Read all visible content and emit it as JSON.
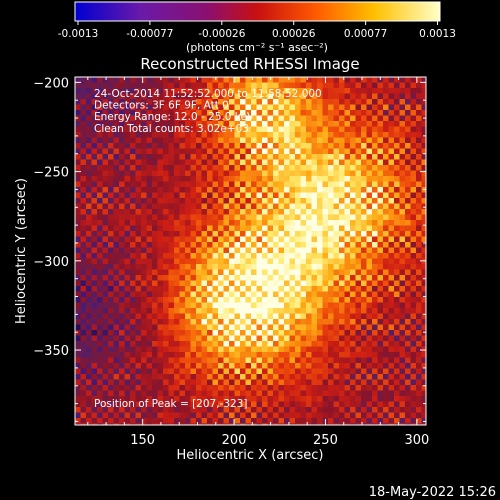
{
  "chart_data": {
    "type": "heatmap",
    "title": "Reconstructed RHESSI Image",
    "xlabel": "Heliocentric X (arcsec)",
    "ylabel": "Heliocentric Y (arcsec)",
    "xlim": [
      113,
      305
    ],
    "ylim": [
      -392,
      -197
    ],
    "x_ticks": [
      150,
      200,
      250,
      300
    ],
    "y_ticks": [
      -200,
      -250,
      -300,
      -350
    ],
    "colorbar": {
      "ticks": [
        "-0.0013",
        "-0.00077",
        "-0.00026",
        "0.00026",
        "0.00077",
        "0.0013"
      ],
      "range": [
        -0.0013,
        0.0013
      ],
      "unit_label": "(photons cm⁻² s⁻¹ asec⁻²)"
    },
    "annotations": [
      "24-Oct-2014 11:52:52.000 to 11:58:52.000",
      "Detectors: 3F 6F 9F, Att 0",
      "Energy Range: 12.0 - 25.0 keV",
      "Clean     Total counts: 3.02e+03"
    ],
    "peak_label": "Position of Peak = [207,-323]",
    "peak": [
      207,
      -323
    ],
    "secondary_peaks": [
      [
        255,
        -268
      ],
      [
        215,
        -215
      ]
    ]
  },
  "footer": {
    "date": "18-May-2022 15:26"
  }
}
